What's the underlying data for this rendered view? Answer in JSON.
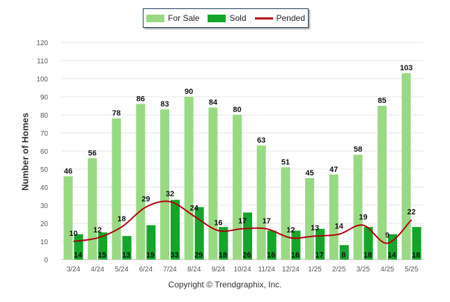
{
  "chart_data": {
    "type": "bar",
    "categories": [
      "3/24",
      "4/24",
      "5/24",
      "6/24",
      "7/24",
      "8/24",
      "9/24",
      "10/24",
      "11/24",
      "12/24",
      "1/25",
      "2/25",
      "3/25",
      "4/25",
      "5/25"
    ],
    "series": [
      {
        "name": "For Sale",
        "type": "bar",
        "color": "#9ad983",
        "values": [
          46,
          56,
          78,
          86,
          83,
          90,
          84,
          80,
          63,
          51,
          45,
          47,
          58,
          85,
          103
        ]
      },
      {
        "name": "Sold",
        "type": "bar",
        "color": "#15a52a",
        "values": [
          14,
          15,
          13,
          19,
          33,
          29,
          18,
          26,
          16,
          16,
          17,
          8,
          18,
          14,
          18
        ]
      },
      {
        "name": "Pended",
        "type": "line",
        "color": "#b0000c",
        "values": [
          10,
          12,
          18,
          29,
          32,
          24,
          16,
          17,
          17,
          12,
          13,
          14,
          19,
          9,
          22
        ]
      }
    ],
    "xlabel": "",
    "ylabel": "Number of Homes",
    "ylim": [
      0,
      120
    ],
    "yticks": [
      0,
      10,
      20,
      30,
      40,
      50,
      60,
      70,
      80,
      90,
      100,
      110,
      120
    ],
    "grid": true,
    "legend_position": "top-center"
  },
  "legend": {
    "for_sale": "For Sale",
    "sold": "Sold",
    "pended": "Pended"
  },
  "copyright": "Copyright © Trendgraphix, Inc."
}
